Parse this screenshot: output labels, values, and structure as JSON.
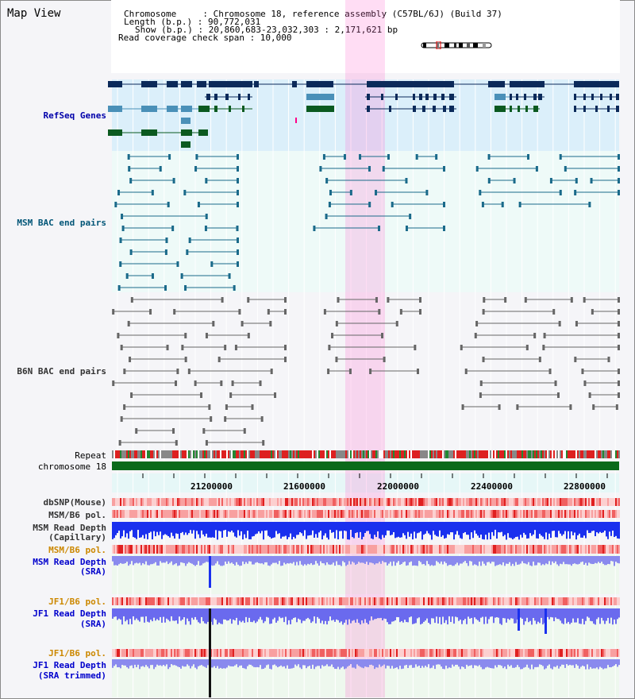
{
  "page_title": "Map View",
  "header": {
    "line1": "Chromosome     : Chromosome 18, reference assembly (C57BL/6J) (Build 37)",
    "line2": "Length (b.p.) : 90,772,031",
    "line3": "Show (b.p.) : 20,860,683-23,032,303 : 2,171,621 bp",
    "line4": "Read coverage check span : 10,000"
  },
  "tracks": {
    "refseq": "RefSeq Genes",
    "msm_bac": "MSM BAC end pairs",
    "b6n_bac": "B6N BAC end pairs",
    "repeat": "Repeat",
    "chromosome": "chromosome 18",
    "dbsnp": "dbSNP(Mouse)",
    "msm_b6_pol_1": "MSM/B6 pol.",
    "msm_depth_cap_1": "MSM Read Depth",
    "msm_depth_cap_2": "(Capillary)",
    "msm_b6_pol_2": "MSM/B6 pol.",
    "msm_depth_sra_1": "MSM Read Depth",
    "msm_depth_sra_2": "(SRA)",
    "jf1_b6_pol_1": "JF1/B6 pol.",
    "jf1_depth_sra_1": "JF1 Read Depth",
    "jf1_depth_sra_2": "(SRA)",
    "jf1_b6_pol_2": "JF1/B6 pol.",
    "jf1_depth_trim_1": "JF1 Read Depth",
    "jf1_depth_trim_2": "(SRA trimmed)"
  },
  "axis": {
    "ticks": [
      "21200000",
      "21600000",
      "22000000",
      "22400000",
      "22800000"
    ]
  },
  "colors": {
    "refseq_label": "#0000aa",
    "msm_label": "#005577",
    "pol_label": "#cc8800",
    "depth_label": "#0000cc",
    "highlight": "#ff66cc"
  }
}
